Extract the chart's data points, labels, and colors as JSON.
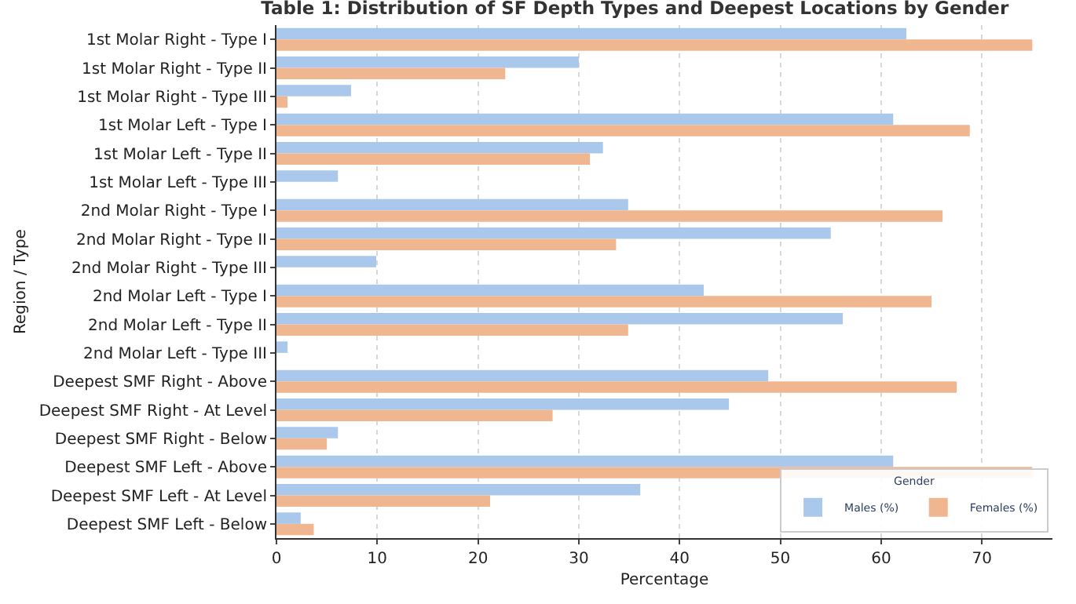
{
  "chart_data": {
    "type": "bar",
    "orientation": "horizontal",
    "title": "Table 1: Distribution of SF Depth Types and Deepest Locations by Gender",
    "xlabel": "Percentage",
    "ylabel": "Region / Type",
    "legend_title": "Gender",
    "categories": [
      "1st Molar Right - Type I",
      "1st Molar Right - Type II",
      "1st Molar Right - Type III",
      "1st Molar Left - Type I",
      "1st Molar Left - Type II",
      "1st Molar Left - Type III",
      "2nd Molar Right - Type I",
      "2nd Molar Right - Type II",
      "2nd Molar Right - Type III",
      "2nd Molar Left - Type I",
      "2nd Molar Left - Type II",
      "2nd Molar Left - Type III",
      "Deepest SMF Right - Above",
      "Deepest SMF Right - At Level",
      "Deepest SMF Right - Below",
      "Deepest SMF Left - Above",
      "Deepest SMF Left - At Level",
      "Deepest SMF Left - Below"
    ],
    "series": [
      {
        "name": "Males (%)",
        "color": "#aac7ec",
        "values": [
          62.5,
          30.0,
          7.4,
          61.2,
          32.4,
          6.1,
          34.9,
          55.0,
          9.9,
          42.4,
          56.2,
          1.1,
          48.8,
          44.9,
          6.1,
          61.2,
          36.1,
          2.4
        ]
      },
      {
        "name": "Females (%)",
        "color": "#f0b690",
        "values": [
          75.0,
          22.7,
          1.1,
          68.8,
          31.1,
          0,
          66.1,
          33.7,
          0,
          65.0,
          34.9,
          0,
          67.5,
          27.4,
          5.0,
          75.0,
          21.2,
          3.7
        ]
      }
    ],
    "xlim": [
      0,
      77
    ],
    "xticks": [
      0,
      10,
      20,
      30,
      40,
      50,
      60,
      70
    ],
    "grid": "x",
    "legend": "bottom right"
  }
}
